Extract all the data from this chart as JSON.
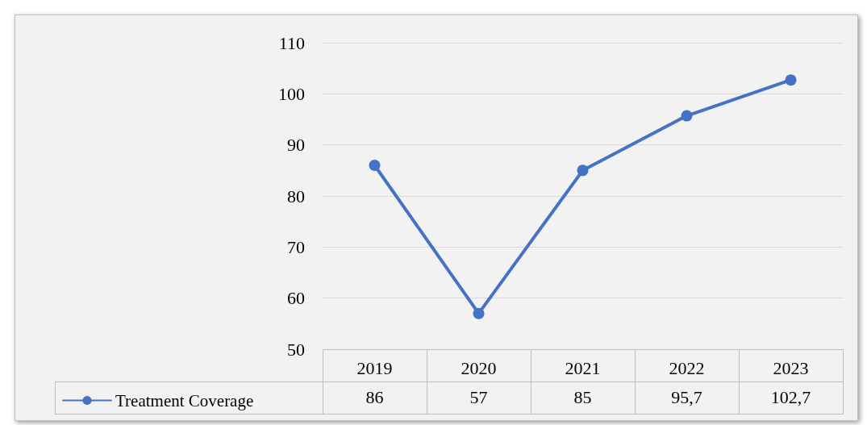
{
  "chart_data": {
    "type": "line",
    "categories": [
      "2019",
      "2020",
      "2021",
      "2022",
      "2023"
    ],
    "series": [
      {
        "name": "Treatment Coverage",
        "color": "#4472c4",
        "values": [
          86,
          57,
          85,
          95.7,
          102.7
        ],
        "value_labels": [
          "86",
          "57",
          "85",
          "95,7",
          "102,7"
        ]
      }
    ],
    "ylim": [
      50,
      110
    ],
    "yticks": [
      50,
      60,
      70,
      80,
      90,
      100,
      110
    ],
    "grid": "y",
    "legend": "bottom left",
    "marker": "circle",
    "line_style": "solid"
  }
}
